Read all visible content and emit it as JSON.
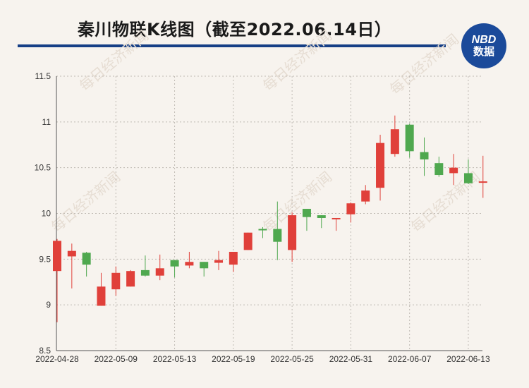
{
  "header": {
    "title": "秦川物联K线图（截至2022.06.14日）",
    "logo_top": "NBD",
    "logo_bottom": "数据",
    "watermark": "每日经济新闻"
  },
  "colors": {
    "up": "#e0403a",
    "down": "#4fa84f",
    "rule": "#163f86",
    "logo": "#1b4a9a"
  },
  "chart_data": {
    "type": "candlestick",
    "ylim": [
      8.5,
      11.5
    ],
    "yticks": [
      8.5,
      9,
      9.5,
      10,
      10.5,
      11,
      11.5
    ],
    "ytick_labels": [
      "8.5",
      "9",
      "9.5",
      "10",
      "10.5",
      "11",
      "11.5"
    ],
    "xtick_labels": [
      "2022-04-28",
      "2022-05-09",
      "2022-05-13",
      "2022-05-19",
      "2022-05-25",
      "2022-05-31",
      "2022-06-07",
      "2022-06-13"
    ],
    "xtick_index": [
      0,
      4,
      8,
      12,
      16,
      20,
      24,
      28
    ],
    "grid": true,
    "candles": [
      {
        "o": 9.37,
        "h": 9.72,
        "l": 8.81,
        "c": 9.7
      },
      {
        "o": 9.53,
        "h": 9.67,
        "l": 9.18,
        "c": 9.59
      },
      {
        "o": 9.57,
        "h": 9.58,
        "l": 9.31,
        "c": 9.44
      },
      {
        "o": 8.99,
        "h": 9.35,
        "l": 8.99,
        "c": 9.2
      },
      {
        "o": 9.17,
        "h": 9.42,
        "l": 9.1,
        "c": 9.35
      },
      {
        "o": 9.2,
        "h": 9.38,
        "l": 9.2,
        "c": 9.37
      },
      {
        "o": 9.38,
        "h": 9.54,
        "l": 9.31,
        "c": 9.32
      },
      {
        "o": 9.32,
        "h": 9.55,
        "l": 9.27,
        "c": 9.4
      },
      {
        "o": 9.49,
        "h": 9.49,
        "l": 9.3,
        "c": 9.42
      },
      {
        "o": 9.43,
        "h": 9.58,
        "l": 9.4,
        "c": 9.47
      },
      {
        "o": 9.47,
        "h": 9.47,
        "l": 9.31,
        "c": 9.4
      },
      {
        "o": 9.46,
        "h": 9.59,
        "l": 9.38,
        "c": 9.49
      },
      {
        "o": 9.44,
        "h": 9.57,
        "l": 9.36,
        "c": 9.58
      },
      {
        "o": 9.6,
        "h": 9.79,
        "l": 9.6,
        "c": 9.79
      },
      {
        "o": 9.83,
        "h": 9.85,
        "l": 9.73,
        "c": 9.82
      },
      {
        "o": 9.83,
        "h": 10.13,
        "l": 9.49,
        "c": 9.69
      },
      {
        "o": 9.6,
        "h": 10.01,
        "l": 9.47,
        "c": 9.98
      },
      {
        "o": 10.05,
        "h": 10.05,
        "l": 9.81,
        "c": 9.96
      },
      {
        "o": 9.98,
        "h": 9.98,
        "l": 9.84,
        "c": 9.95
      },
      {
        "o": 9.94,
        "h": 9.95,
        "l": 9.81,
        "c": 9.95
      },
      {
        "o": 9.99,
        "h": 10.12,
        "l": 9.9,
        "c": 10.11
      },
      {
        "o": 10.13,
        "h": 10.31,
        "l": 10.1,
        "c": 10.25
      },
      {
        "o": 10.28,
        "h": 10.86,
        "l": 10.14,
        "c": 10.77
      },
      {
        "o": 10.65,
        "h": 11.07,
        "l": 10.62,
        "c": 10.92
      },
      {
        "o": 10.97,
        "h": 10.98,
        "l": 10.61,
        "c": 10.68
      },
      {
        "o": 10.67,
        "h": 10.83,
        "l": 10.41,
        "c": 10.59
      },
      {
        "o": 10.55,
        "h": 10.62,
        "l": 10.4,
        "c": 10.42
      },
      {
        "o": 10.44,
        "h": 10.65,
        "l": 10.31,
        "c": 10.5
      },
      {
        "o": 10.44,
        "h": 10.59,
        "l": 10.32,
        "c": 10.33
      },
      {
        "o": 10.34,
        "h": 10.63,
        "l": 10.17,
        "c": 10.35
      }
    ]
  }
}
